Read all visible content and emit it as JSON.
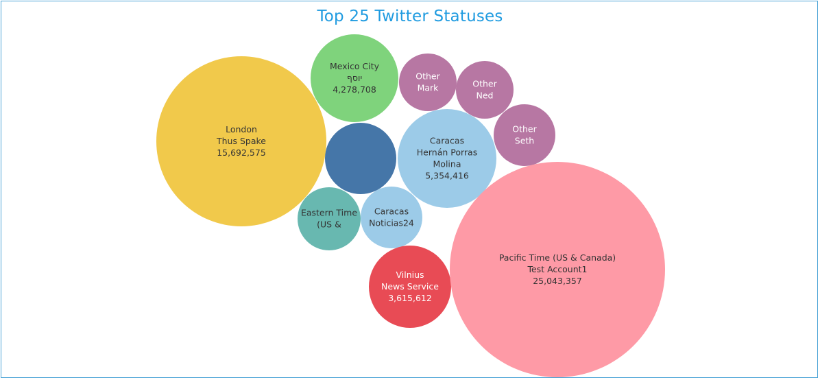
{
  "chart_data": {
    "type": "bubble",
    "title": "Top 25 Twitter Statuses",
    "bubbles": [
      {
        "location": "London",
        "user": "Thus Spake",
        "statuses": 15692575,
        "statuses_label": "15,692,575",
        "color": "#f1c94b",
        "text_color": "#333333"
      },
      {
        "location": "Mexico City",
        "user": "יוסף",
        "statuses": 4278708,
        "statuses_label": "4,278,708",
        "color": "#7fd37c",
        "text_color": "#333333"
      },
      {
        "location": "Other",
        "user": "Mark",
        "statuses": null,
        "statuses_label": "",
        "color": "#b777a3",
        "text_color": "#ffffff"
      },
      {
        "location": "Other",
        "user": "Ned",
        "statuses": null,
        "statuses_label": "",
        "color": "#b777a3",
        "text_color": "#ffffff"
      },
      {
        "location": "Other",
        "user": "Seth",
        "statuses": null,
        "statuses_label": "",
        "color": "#b777a3",
        "text_color": "#ffffff"
      },
      {
        "location": "",
        "user": "",
        "statuses": null,
        "statuses_label": "",
        "color": "#4576a8",
        "text_color": "#ffffff"
      },
      {
        "location": "Caracas",
        "user": "Hernán Porras Molina",
        "statuses": 5354416,
        "statuses_label": "5,354,416",
        "color": "#9ccbe8",
        "text_color": "#333333"
      },
      {
        "location": "Eastern Time (US &",
        "user": "",
        "statuses": null,
        "statuses_label": "",
        "color": "#68b8b0",
        "text_color": "#333333"
      },
      {
        "location": "Caracas",
        "user": "Noticias24",
        "statuses": null,
        "statuses_label": "",
        "color": "#9ccbe8",
        "text_color": "#333333"
      },
      {
        "location": "Vilnius",
        "user": "News Service",
        "statuses": 3615612,
        "statuses_label": "3,615,612",
        "color": "#e84b55",
        "text_color": "#ffffff"
      },
      {
        "location": "Pacific Time (US & Canada)",
        "user": "Test Account1",
        "statuses": 25043357,
        "statuses_label": "25,043,357",
        "color": "#fe9aa6",
        "text_color": "#333333"
      }
    ]
  }
}
